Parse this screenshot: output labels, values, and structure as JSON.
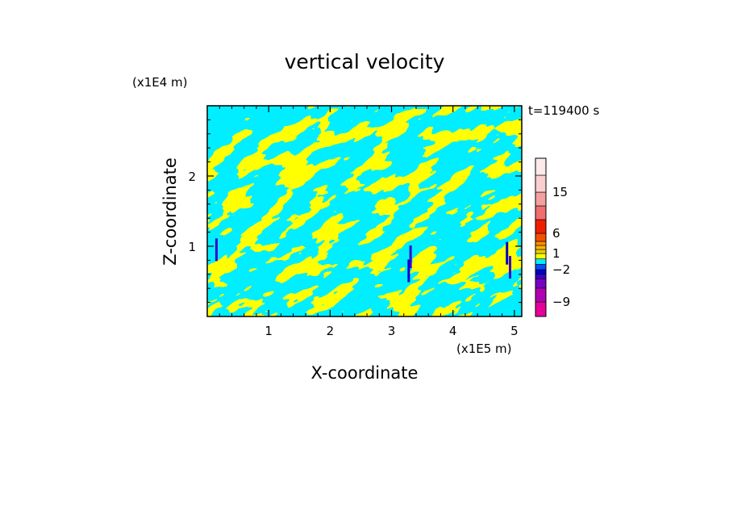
{
  "chart_data": {
    "type": "heatmap",
    "title": "vertical velocity",
    "xlabel": "X-coordinate",
    "ylabel": "Z-coordinate",
    "x_unit": "(x1E5 m)",
    "y_unit": "(x1E4 m)",
    "time_label": "t=119400 s",
    "xlim": [
      0,
      5.12
    ],
    "ylim": [
      0,
      3.0
    ],
    "x_ticks": [
      1,
      2,
      3,
      4,
      5
    ],
    "y_ticks": [
      1,
      2
    ],
    "x_tick_labels": [
      "1",
      "2",
      "3",
      "4",
      "5"
    ],
    "y_tick_labels": [
      "1",
      "2"
    ],
    "field_colors": {
      "positive": "#ffff00",
      "negative": "#00eeff"
    },
    "colorbar": {
      "levels": [
        -12,
        -9,
        -6,
        -4,
        -3,
        -2,
        -1,
        0,
        1,
        2,
        3,
        4,
        6,
        9,
        12,
        15,
        18,
        21
      ],
      "colors": [
        "#e6009a",
        "#b000b4",
        "#7a00c4",
        "#3c00c8",
        "#0000c8",
        "#0050ff",
        "#00eeff",
        "#ffff00",
        "#e6d200",
        "#ffb400",
        "#ff8c00",
        "#f05000",
        "#f01e00",
        "#f06e6e",
        "#f5a0a0",
        "#fbcfcf",
        "#fdeaea"
      ],
      "tick_values": [
        -9,
        -2,
        1,
        6,
        15
      ],
      "tick_labels": [
        "−9",
        "−2",
        "1",
        "6",
        "15"
      ]
    }
  }
}
